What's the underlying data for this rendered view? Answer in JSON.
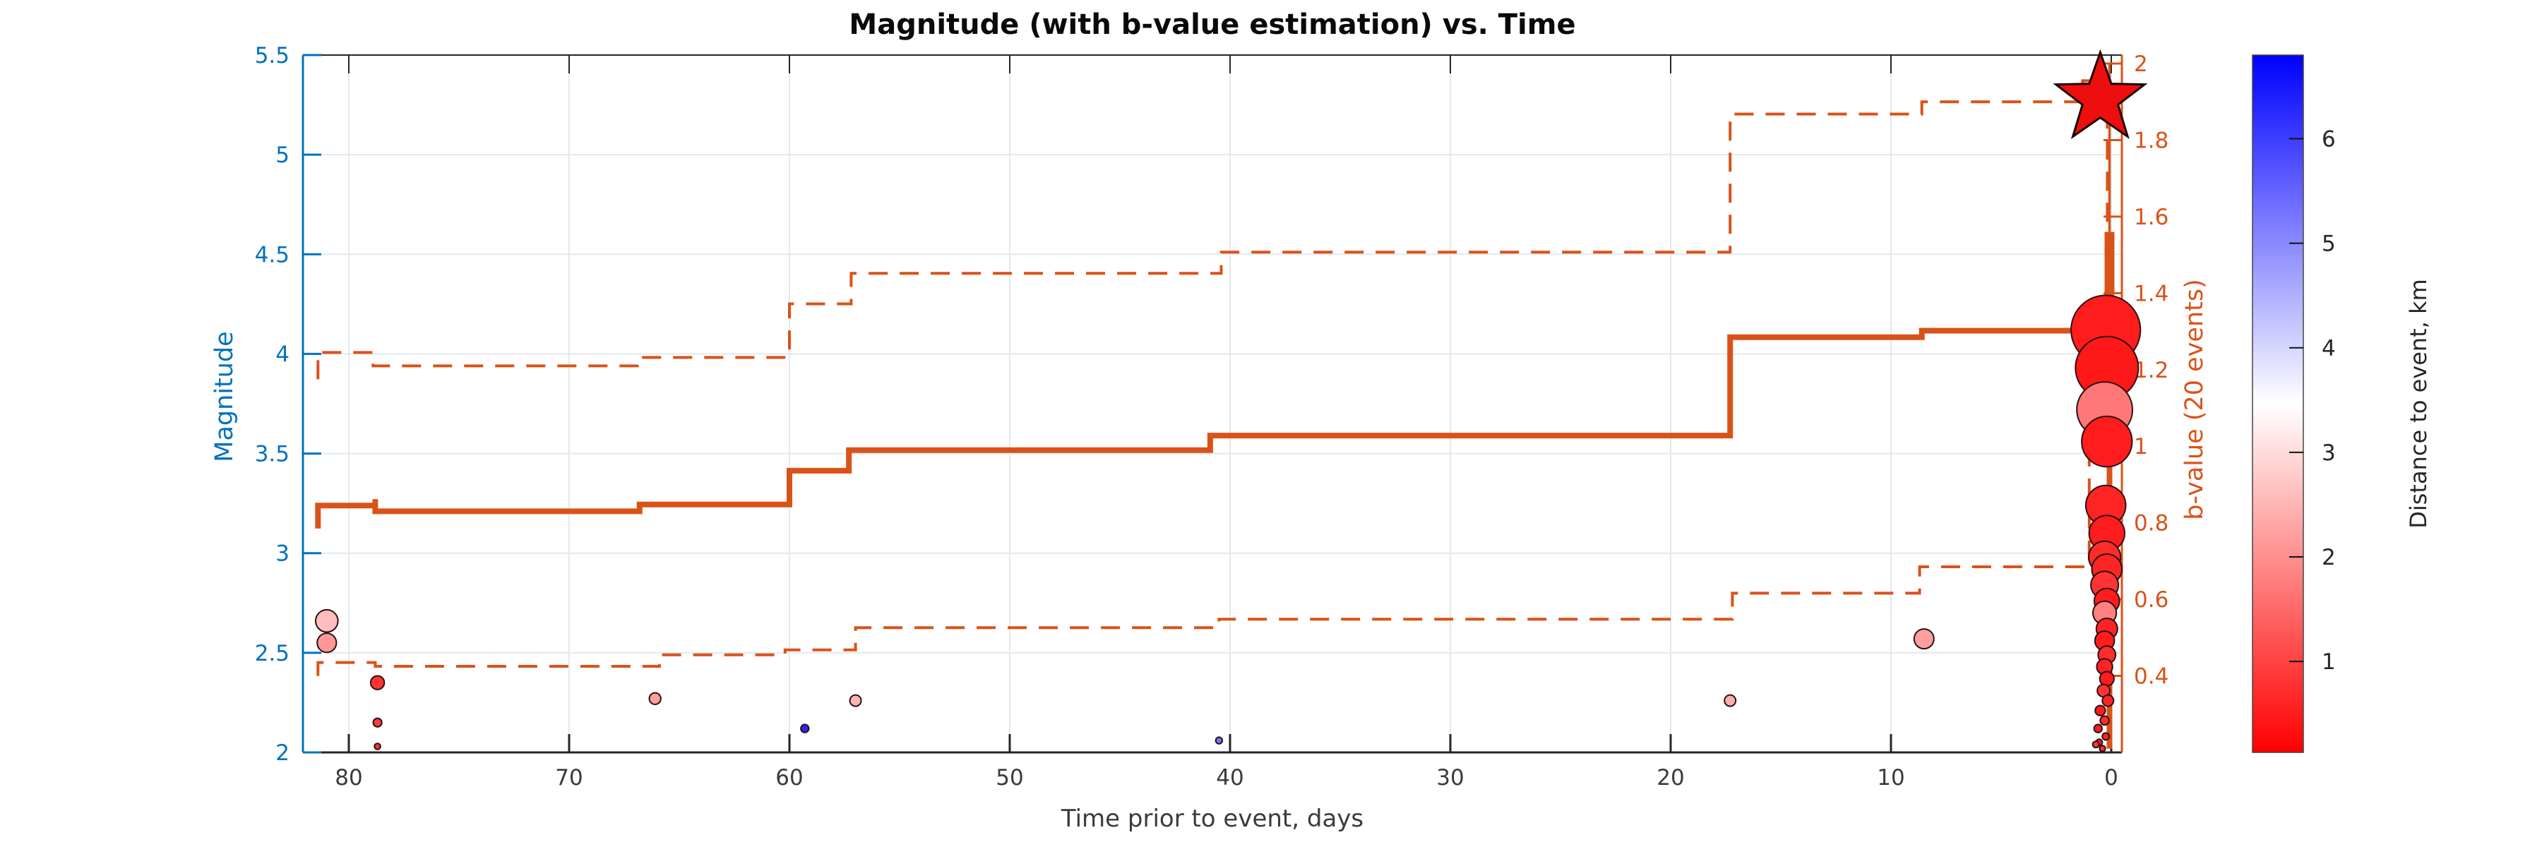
{
  "figure": {
    "title": "Magnitude (with b-value estimation) vs. Time"
  },
  "axes": {
    "x": {
      "label": "Time prior to event, days",
      "ticks": [
        80,
        70,
        60,
        50,
        40,
        30,
        20,
        10,
        0
      ],
      "direction": "reversed"
    },
    "y_left": {
      "label": "Magnitude",
      "color": "#0072BD",
      "ticks": [
        2,
        2.5,
        3,
        3.5,
        4,
        4.5,
        5,
        5.5
      ]
    },
    "y_right": {
      "label": "b-value (20 events)",
      "color": "#D95319",
      "ticks": [
        0.4,
        0.6,
        0.8,
        1,
        1.2,
        1.4,
        1.6,
        1.8,
        2
      ]
    },
    "colorbar": {
      "label": "Distance to event, km",
      "ticks": [
        1,
        2,
        3,
        4,
        5,
        6
      ],
      "range": [
        0.13,
        6.8
      ],
      "color_low": "#FF0000",
      "color_mid": "#FFFFFF",
      "color_high": "#0000FF"
    }
  },
  "chart_data": {
    "type": "scatter",
    "title": "Magnitude (with b-value estimation) vs. Time",
    "xlabel": "Time prior to event, days",
    "x_range": [
      82.1,
      -0.5
    ],
    "mag_range": [
      2,
      5.5
    ],
    "b_range": [
      0.2,
      2.02
    ],
    "grid": true,
    "main_event": {
      "day": 0.5,
      "magnitude": 5.28,
      "distance_km": 0.2,
      "marker": "star"
    },
    "events": [
      [
        81.0,
        2.66,
        2.6
      ],
      [
        81.0,
        2.55,
        2.1
      ],
      [
        78.7,
        2.35,
        0.8
      ],
      [
        78.7,
        2.15,
        0.9
      ],
      [
        78.7,
        2.03,
        0.8
      ],
      [
        66.1,
        2.27,
        2.2
      ],
      [
        59.3,
        2.12,
        6.3
      ],
      [
        57.0,
        2.26,
        2.5
      ],
      [
        40.5,
        2.06,
        5.3
      ],
      [
        17.3,
        2.26,
        2.4
      ],
      [
        8.5,
        2.57,
        2.2
      ],
      [
        0.25,
        4.12,
        0.5
      ],
      [
        0.2,
        3.93,
        0.45
      ],
      [
        0.3,
        3.72,
        1.7
      ],
      [
        0.2,
        3.56,
        0.5
      ],
      [
        0.25,
        3.24,
        0.6
      ],
      [
        0.2,
        3.1,
        0.5
      ],
      [
        0.3,
        2.98,
        0.7
      ],
      [
        0.2,
        2.92,
        0.6
      ],
      [
        0.3,
        2.84,
        0.8
      ],
      [
        0.2,
        2.76,
        0.5
      ],
      [
        0.3,
        2.7,
        1.8
      ],
      [
        0.2,
        2.62,
        0.6
      ],
      [
        0.3,
        2.56,
        0.5
      ],
      [
        0.2,
        2.49,
        0.7
      ],
      [
        0.3,
        2.43,
        0.6
      ],
      [
        0.2,
        2.37,
        0.5
      ],
      [
        0.35,
        2.31,
        0.8
      ],
      [
        0.15,
        2.26,
        0.6
      ],
      [
        0.5,
        2.21,
        0.5
      ],
      [
        0.3,
        2.16,
        0.7
      ],
      [
        0.6,
        2.12,
        0.5
      ],
      [
        0.25,
        2.08,
        0.6
      ],
      [
        0.55,
        2.05,
        0.5
      ],
      [
        0.4,
        2.02,
        0.7
      ],
      [
        0.7,
        2.04,
        0.9
      ]
    ],
    "b_value_solid": [
      [
        81.4,
        0.785
      ],
      [
        81.4,
        0.845
      ],
      [
        78.8,
        0.845
      ],
      [
        78.8,
        0.862
      ],
      [
        78.8,
        0.83
      ],
      [
        66.8,
        0.83
      ],
      [
        66.8,
        0.848
      ],
      [
        60.0,
        0.848
      ],
      [
        60.0,
        0.936
      ],
      [
        57.3,
        0.936
      ],
      [
        57.3,
        0.99
      ],
      [
        40.9,
        0.99
      ],
      [
        40.9,
        1.028
      ],
      [
        17.3,
        1.028
      ],
      [
        17.3,
        1.285
      ],
      [
        8.6,
        1.285
      ],
      [
        8.6,
        1.302
      ],
      [
        0.15,
        1.302
      ]
    ],
    "b_value_upper_dashed": [
      [
        81.4,
        1.175
      ],
      [
        81.4,
        1.245
      ],
      [
        78.9,
        1.245
      ],
      [
        78.9,
        1.21
      ],
      [
        66.9,
        1.21
      ],
      [
        66.9,
        1.232
      ],
      [
        60.0,
        1.232
      ],
      [
        60.0,
        1.372
      ],
      [
        57.2,
        1.372
      ],
      [
        57.2,
        1.452
      ],
      [
        40.4,
        1.452
      ],
      [
        40.4,
        1.507
      ],
      [
        17.3,
        1.507
      ],
      [
        17.3,
        1.868
      ],
      [
        8.6,
        1.868
      ],
      [
        8.6,
        1.9
      ],
      [
        1.3,
        1.9
      ],
      [
        1.3,
        1.955
      ],
      [
        0.18,
        1.955
      ],
      [
        0.18,
        1.3
      ]
    ],
    "b_value_lower_dashed": [
      [
        81.4,
        0.4
      ],
      [
        81.4,
        0.435
      ],
      [
        78.8,
        0.435
      ],
      [
        78.8,
        0.425
      ],
      [
        65.9,
        0.425
      ],
      [
        65.9,
        0.455
      ],
      [
        60.2,
        0.455
      ],
      [
        60.2,
        0.468
      ],
      [
        57.0,
        0.468
      ],
      [
        57.0,
        0.526
      ],
      [
        40.5,
        0.526
      ],
      [
        40.5,
        0.548
      ],
      [
        17.2,
        0.548
      ],
      [
        17.2,
        0.616
      ],
      [
        8.7,
        0.616
      ],
      [
        8.7,
        0.685
      ],
      [
        1.0,
        0.685
      ],
      [
        1.0,
        1.04
      ],
      [
        0.18,
        1.04
      ]
    ],
    "b_value_spike": {
      "day": 0.08,
      "segments": [
        [
          2.0,
          1.56,
          3.5
        ],
        [
          1.56,
          1.2,
          14
        ],
        [
          1.2,
          0.21,
          8
        ]
      ]
    }
  },
  "styles": {
    "line_color": "#D95319",
    "grid_color": "#e2eaf0",
    "axis_dark": "#262626",
    "tick_label_color": "#3b3b3b",
    "star_fill": "#ee0e0e",
    "marker_edge": "#2d1010"
  }
}
